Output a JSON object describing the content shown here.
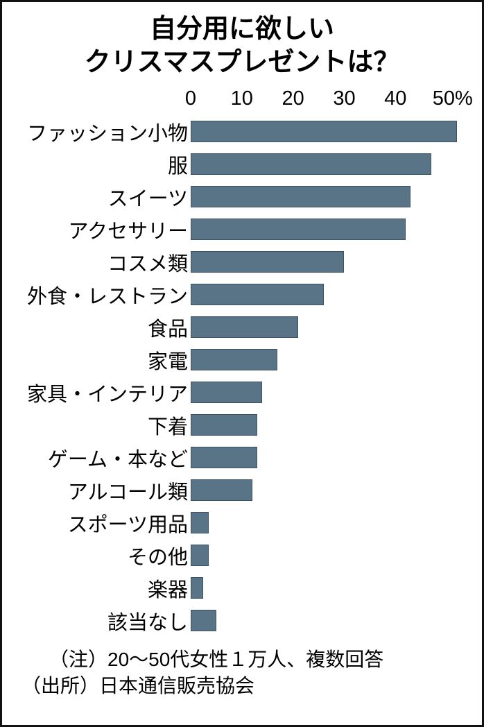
{
  "title": {
    "line1": "自分用に欲しい",
    "line2": "クリスマスプレゼントは？"
  },
  "chart_data": {
    "type": "bar",
    "orientation": "horizontal",
    "title": "自分用に欲しいクリスマスプレゼントは？",
    "unit": "%",
    "xlabel": "",
    "ylabel": "",
    "xlim": [
      0,
      55
    ],
    "scale_max": 55,
    "grid": false,
    "bar_color": "#5a7487",
    "bar_border_color": "#3d5261",
    "ticks": [
      {
        "value": 0,
        "label": "0"
      },
      {
        "value": 10,
        "label": "10"
      },
      {
        "value": 20,
        "label": "20"
      },
      {
        "value": 30,
        "label": "30"
      },
      {
        "value": 40,
        "label": "40"
      },
      {
        "value": 50,
        "label": "50%"
      }
    ],
    "categories": [
      "ファッション小物",
      "服",
      "スイーツ",
      "アクセサリー",
      "コスメ類",
      "外食・レストラン",
      "食品",
      "家電",
      "家具・インテリア",
      "下着",
      "ゲーム・本など",
      "アルコール類",
      "スポーツ用品",
      "その他",
      "楽器",
      "該当なし"
    ],
    "values": [
      52,
      47,
      43,
      42,
      30,
      26,
      21,
      17,
      14,
      13,
      13,
      12,
      3.5,
      3.5,
      2.5,
      5
    ]
  },
  "notes": {
    "line1": "（注）20～50代女性１万人、複数回答",
    "line2": "（出所）日本通信販売協会"
  }
}
